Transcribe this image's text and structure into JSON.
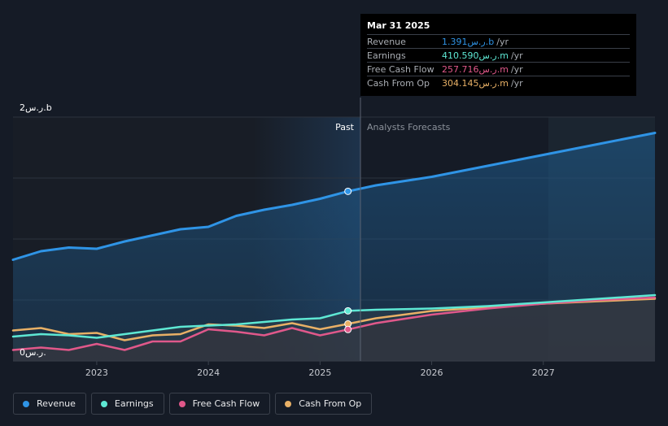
{
  "tooltip": {
    "date": "Mar 31 2025",
    "rows": [
      {
        "label": "Revenue",
        "value": "1.391ر.س.b",
        "unit": "/yr",
        "color": "#2f94e6"
      },
      {
        "label": "Earnings",
        "value": "410.590ر.س.m",
        "unit": "/yr",
        "color": "#5ee8d4"
      },
      {
        "label": "Free Cash Flow",
        "value": "257.716ر.س.m",
        "unit": "/yr",
        "color": "#e0588a"
      },
      {
        "label": "Cash From Op",
        "value": "304.145ر.س.m",
        "unit": "/yr",
        "color": "#e8b066"
      }
    ]
  },
  "legend": [
    {
      "label": "Revenue",
      "color": "#2f94e6"
    },
    {
      "label": "Earnings",
      "color": "#5ee8d4"
    },
    {
      "label": "Free Cash Flow",
      "color": "#e0588a"
    },
    {
      "label": "Cash From Op",
      "color": "#e8b066"
    }
  ],
  "chart_data": {
    "type": "line",
    "y_top_label": "2ر.س.b",
    "y_bottom_label": "0ر.س.",
    "ylim": [
      0,
      2.0
    ],
    "xlim": [
      2022.25,
      2028.0
    ],
    "x_ticks": [
      2023,
      2024,
      2025,
      2026,
      2027
    ],
    "x_tick_labels": [
      "2023",
      "2024",
      "2025",
      "2026",
      "2027"
    ],
    "divider_x": 2025.25,
    "past_label": "Past",
    "forecast_label": "Analysts Forecasts",
    "grid": true,
    "legend_position": "bottom",
    "series": [
      {
        "name": "Revenue",
        "color": "#2f94e6",
        "fill": true,
        "points": [
          [
            2022.25,
            0.83
          ],
          [
            2022.5,
            0.9
          ],
          [
            2022.75,
            0.93
          ],
          [
            2023.0,
            0.92
          ],
          [
            2023.25,
            0.98
          ],
          [
            2023.5,
            1.03
          ],
          [
            2023.75,
            1.08
          ],
          [
            2024.0,
            1.1
          ],
          [
            2024.25,
            1.19
          ],
          [
            2024.5,
            1.24
          ],
          [
            2024.75,
            1.28
          ],
          [
            2025.0,
            1.33
          ],
          [
            2025.25,
            1.391
          ],
          [
            2025.5,
            1.44
          ],
          [
            2026.0,
            1.51
          ],
          [
            2026.5,
            1.6
          ],
          [
            2027.0,
            1.69
          ],
          [
            2027.5,
            1.78
          ],
          [
            2028.0,
            1.87
          ]
        ]
      },
      {
        "name": "Earnings",
        "color": "#5ee8d4",
        "fill": false,
        "points": [
          [
            2022.25,
            0.2
          ],
          [
            2022.5,
            0.22
          ],
          [
            2022.75,
            0.21
          ],
          [
            2023.0,
            0.19
          ],
          [
            2023.25,
            0.22
          ],
          [
            2023.5,
            0.25
          ],
          [
            2023.75,
            0.28
          ],
          [
            2024.0,
            0.29
          ],
          [
            2024.25,
            0.3
          ],
          [
            2024.5,
            0.32
          ],
          [
            2024.75,
            0.34
          ],
          [
            2025.0,
            0.35
          ],
          [
            2025.25,
            0.411
          ],
          [
            2025.5,
            0.42
          ],
          [
            2026.0,
            0.43
          ],
          [
            2026.5,
            0.45
          ],
          [
            2027.0,
            0.48
          ],
          [
            2027.5,
            0.51
          ],
          [
            2028.0,
            0.54
          ]
        ]
      },
      {
        "name": "Free Cash Flow",
        "color": "#e0588a",
        "fill": false,
        "points": [
          [
            2022.25,
            0.09
          ],
          [
            2022.5,
            0.11
          ],
          [
            2022.75,
            0.09
          ],
          [
            2023.0,
            0.14
          ],
          [
            2023.25,
            0.09
          ],
          [
            2023.5,
            0.16
          ],
          [
            2023.75,
            0.16
          ],
          [
            2024.0,
            0.26
          ],
          [
            2024.25,
            0.24
          ],
          [
            2024.5,
            0.21
          ],
          [
            2024.75,
            0.27
          ],
          [
            2025.0,
            0.21
          ],
          [
            2025.25,
            0.258
          ],
          [
            2025.5,
            0.31
          ],
          [
            2026.0,
            0.38
          ],
          [
            2026.5,
            0.43
          ],
          [
            2027.0,
            0.47
          ],
          [
            2027.5,
            0.5
          ],
          [
            2028.0,
            0.52
          ]
        ]
      },
      {
        "name": "Cash From Op",
        "color": "#e8b066",
        "fill": false,
        "points": [
          [
            2022.25,
            0.25
          ],
          [
            2022.5,
            0.27
          ],
          [
            2022.75,
            0.22
          ],
          [
            2023.0,
            0.23
          ],
          [
            2023.25,
            0.17
          ],
          [
            2023.5,
            0.21
          ],
          [
            2023.75,
            0.22
          ],
          [
            2024.0,
            0.3
          ],
          [
            2024.25,
            0.29
          ],
          [
            2024.5,
            0.27
          ],
          [
            2024.75,
            0.31
          ],
          [
            2025.0,
            0.26
          ],
          [
            2025.25,
            0.304
          ],
          [
            2025.5,
            0.35
          ],
          [
            2026.0,
            0.41
          ],
          [
            2026.5,
            0.44
          ],
          [
            2027.0,
            0.47
          ],
          [
            2027.5,
            0.49
          ],
          [
            2028.0,
            0.51
          ]
        ]
      }
    ]
  }
}
